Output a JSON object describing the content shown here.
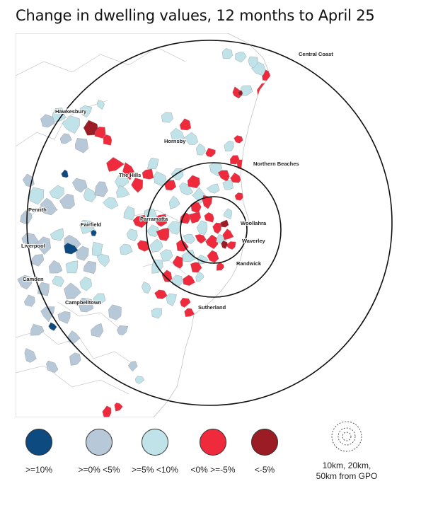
{
  "title": "Change in dwelling values, 12 months to April 25",
  "map": {
    "places": [
      {
        "key": "central-coast",
        "label": "Central Coast"
      },
      {
        "key": "hawkesbury",
        "label": "Hawkesbury"
      },
      {
        "key": "hornsby",
        "label": "Hornsby"
      },
      {
        "key": "northern-beaches",
        "label": "Northern Beaches"
      },
      {
        "key": "the-hills",
        "label": "The Hills"
      },
      {
        "key": "penrith",
        "label": "Penrith"
      },
      {
        "key": "fairfield",
        "label": "Fairfield"
      },
      {
        "key": "parramatta",
        "label": "Parramatta"
      },
      {
        "key": "woollahra",
        "label": "Woollahra"
      },
      {
        "key": "liverpool",
        "label": "Liverpool"
      },
      {
        "key": "waverley",
        "label": "Waverley"
      },
      {
        "key": "randwick",
        "label": "Randwick"
      },
      {
        "key": "camden",
        "label": "Camden"
      },
      {
        "key": "campbelltown",
        "label": "Campbelltown"
      },
      {
        "key": "sutherland",
        "label": "Sutherland"
      }
    ]
  },
  "legend": {
    "items": [
      {
        "label": ">=10%",
        "color": "#0d4a80"
      },
      {
        "label": ">=0% <5%",
        "color": "#b7c9d8"
      },
      {
        "label": ">=5% <10%",
        "color": "#bfe3e8"
      },
      {
        "label": "<0% >=-5%",
        "color": "#ee2a3c"
      },
      {
        "label": "<-5%",
        "color": "#9b1c24"
      }
    ],
    "rings_label": "10km, 20km, 50km from GPO"
  }
}
